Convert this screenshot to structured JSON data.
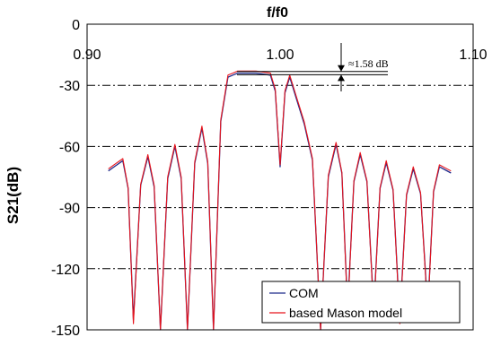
{
  "chart_data": {
    "type": "line",
    "title": "f/f0",
    "xlabel": "f/f0",
    "ylabel": "S21(dB)",
    "xlim": [
      0.9,
      1.1
    ],
    "ylim": [
      -150,
      0
    ],
    "xticks": [
      0.9,
      1.0,
      1.1
    ],
    "xtick_labels": [
      "0.90",
      "1.00",
      "1.10"
    ],
    "yticks": [
      0,
      -30,
      -60,
      -90,
      -120,
      -150
    ],
    "ytick_labels": [
      "0",
      "-30",
      "-60",
      "-90",
      "-120",
      "-150"
    ],
    "grid": "dash-dot horizontal",
    "legend_position": "bottom-right",
    "annotation": {
      "text": "≈1.58 dB",
      "y_top": -23.2,
      "y_bottom": -24.8
    },
    "series": [
      {
        "name": "COM",
        "color": "#1f2a8a",
        "x": [
          0.911,
          0.9185,
          0.924,
          0.9315,
          0.938,
          0.9455,
          0.952,
          0.9595,
          0.9655,
          0.973,
          0.978,
          0.9875,
          0.995,
          1.0,
          1.005,
          1.0125,
          1.021,
          1.029,
          1.035,
          1.0415,
          1.0485,
          1.055,
          1.062,
          1.069,
          1.0765,
          1.0825,
          1.0885
        ],
        "y": [
          -72,
          -67,
          -145,
          -65,
          -150,
          -60,
          -150,
          -51,
          -150,
          -26,
          -24,
          -24,
          -25,
          -70,
          -26,
          -49,
          -150,
          -59,
          -140,
          -64,
          -140,
          -68,
          -145,
          -71,
          -140,
          -70,
          -73
        ]
      },
      {
        "name": "based Mason model",
        "color": "#e8141c",
        "x": [
          0.911,
          0.9185,
          0.924,
          0.9315,
          0.938,
          0.9455,
          0.952,
          0.9595,
          0.9655,
          0.973,
          0.978,
          0.9875,
          0.995,
          1.0,
          1.005,
          1.0125,
          1.021,
          1.029,
          1.035,
          1.0415,
          1.0485,
          1.055,
          1.062,
          1.069,
          1.0765,
          1.0825,
          1.0885
        ],
        "y": [
          -71,
          -66,
          -147,
          -64,
          -150,
          -59,
          -150,
          -50,
          -150,
          -25,
          -23,
          -23,
          -24,
          -69,
          -25,
          -48,
          -150,
          -58,
          -142,
          -63,
          -142,
          -67,
          -147,
          -70,
          -142,
          -69,
          -72
        ]
      }
    ]
  }
}
